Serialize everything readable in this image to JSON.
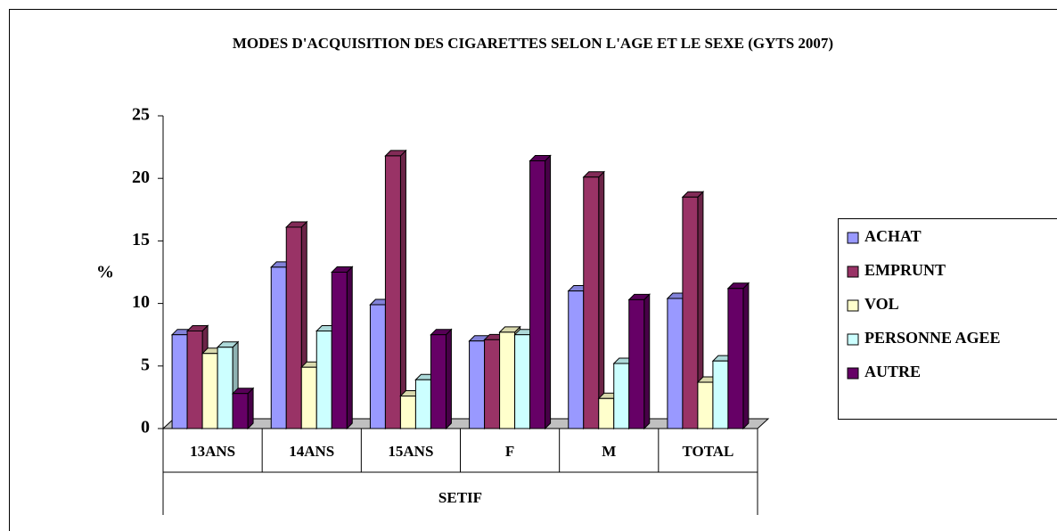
{
  "chart_data": {
    "type": "bar3d",
    "title": "MODES D'ACQUISITION DES CIGARETTES SELON L'AGE ET LE SEXE (GYTS 2007)",
    "ylabel": "%",
    "xlabel": "SETIF",
    "categories": [
      "13ANS",
      "14ANS",
      "15ANS",
      "F",
      "M",
      "TOTAL"
    ],
    "series": [
      {
        "name": "ACHAT",
        "color": "#9999ff",
        "values": [
          7.5,
          12.9,
          9.9,
          7.0,
          11.0,
          10.4
        ]
      },
      {
        "name": "EMPRUNT",
        "color": "#993366",
        "values": [
          7.8,
          16.1,
          21.8,
          7.1,
          20.1,
          18.5
        ]
      },
      {
        "name": "VOL",
        "color": "#ffffcc",
        "values": [
          6.0,
          4.9,
          2.6,
          7.7,
          2.4,
          3.7
        ]
      },
      {
        "name": "PERSONNE AGEE",
        "color": "#ccffff",
        "values": [
          6.5,
          7.8,
          3.9,
          7.5,
          5.2,
          5.4
        ]
      },
      {
        "name": "AUTRE",
        "color": "#660066",
        "values": [
          2.8,
          12.5,
          7.5,
          21.4,
          10.3,
          11.2
        ]
      }
    ],
    "ylim": [
      0,
      25
    ],
    "yticks": [
      0,
      5,
      10,
      15,
      20,
      25
    ],
    "legend": "right"
  }
}
